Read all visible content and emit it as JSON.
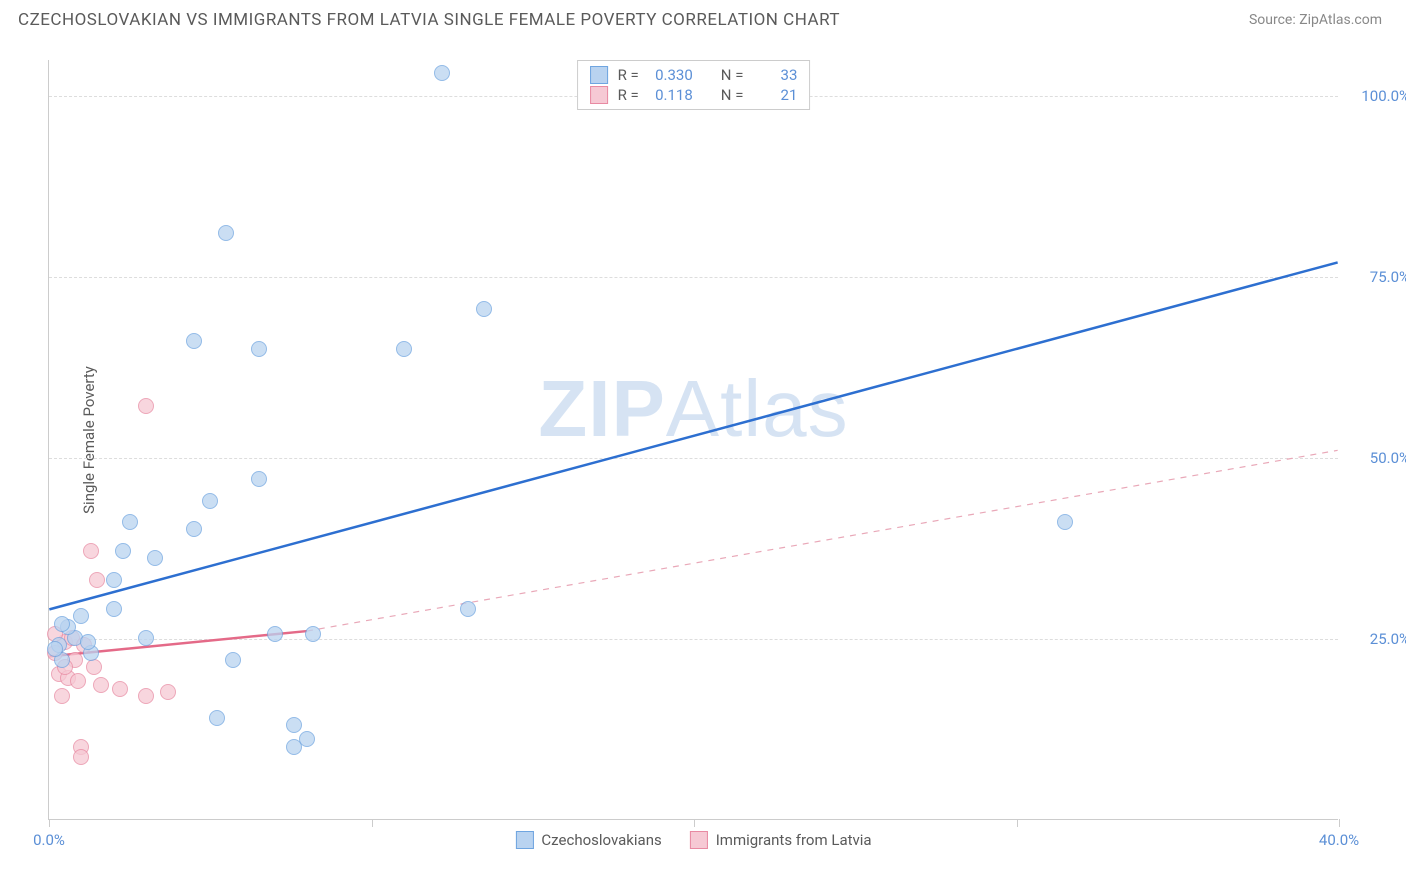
{
  "header": {
    "title": "CZECHOSLOVAKIAN VS IMMIGRANTS FROM LATVIA SINGLE FEMALE POVERTY CORRELATION CHART",
    "source": "Source: ZipAtlas.com"
  },
  "chart": {
    "type": "scatter",
    "ylabel": "Single Female Poverty",
    "watermark": "ZIPAtlas",
    "xlim": [
      0,
      40
    ],
    "ylim": [
      0,
      105
    ],
    "background_color": "#ffffff",
    "grid_color": "#dddddd",
    "axis_color": "#cccccc",
    "tick_label_color": "#5b8fd6",
    "text_color": "#5a5a5a",
    "tick_fontsize": 15,
    "label_fontsize": 15,
    "title_fontsize": 17,
    "yticks": [
      {
        "v": 25,
        "label": "25.0%"
      },
      {
        "v": 50,
        "label": "50.0%"
      },
      {
        "v": 75,
        "label": "75.0%"
      },
      {
        "v": 100,
        "label": "100.0%"
      }
    ],
    "xticks": [
      {
        "v": 0,
        "label": "0.0%"
      },
      {
        "v": 10,
        "label": ""
      },
      {
        "v": 20,
        "label": ""
      },
      {
        "v": 30,
        "label": ""
      },
      {
        "v": 40,
        "label": "40.0%"
      }
    ],
    "series": [
      {
        "key": "czech",
        "name": "Czechoslovakians",
        "fill": "#b9d3f0",
        "stroke": "#6fa5e0",
        "marker_radius": 8,
        "marker_opacity": 0.75,
        "stats": {
          "R": "0.330",
          "N": "33"
        },
        "trend": {
          "solid": true,
          "color": "#2d6fd0",
          "width": 2.5,
          "x1": 0,
          "y1": 29,
          "x2": 40,
          "y2": 77
        },
        "points": [
          {
            "x": 12.2,
            "y": 103
          },
          {
            "x": 5.5,
            "y": 81
          },
          {
            "x": 13.5,
            "y": 70.5
          },
          {
            "x": 4.5,
            "y": 66
          },
          {
            "x": 6.5,
            "y": 65
          },
          {
            "x": 11.0,
            "y": 65
          },
          {
            "x": 6.5,
            "y": 47
          },
          {
            "x": 5.0,
            "y": 44
          },
          {
            "x": 2.5,
            "y": 41
          },
          {
            "x": 4.5,
            "y": 40
          },
          {
            "x": 2.3,
            "y": 37
          },
          {
            "x": 3.3,
            "y": 36
          },
          {
            "x": 2.0,
            "y": 33
          },
          {
            "x": 2.0,
            "y": 29
          },
          {
            "x": 13.0,
            "y": 29
          },
          {
            "x": 31.5,
            "y": 41
          },
          {
            "x": 7.0,
            "y": 25.5
          },
          {
            "x": 8.2,
            "y": 25.5
          },
          {
            "x": 3.0,
            "y": 25
          },
          {
            "x": 0.8,
            "y": 25
          },
          {
            "x": 0.3,
            "y": 24
          },
          {
            "x": 1.3,
            "y": 23
          },
          {
            "x": 5.7,
            "y": 22
          },
          {
            "x": 0.4,
            "y": 22
          },
          {
            "x": 5.2,
            "y": 14
          },
          {
            "x": 7.6,
            "y": 13
          },
          {
            "x": 8.0,
            "y": 11
          },
          {
            "x": 7.6,
            "y": 10
          },
          {
            "x": 0.6,
            "y": 26.5
          },
          {
            "x": 1.0,
            "y": 28
          },
          {
            "x": 1.2,
            "y": 24.5
          },
          {
            "x": 0.2,
            "y": 23.5
          },
          {
            "x": 0.4,
            "y": 27
          }
        ]
      },
      {
        "key": "latvia",
        "name": "Immigrants from Latvia",
        "fill": "#f6c9d4",
        "stroke": "#e88aa2",
        "marker_radius": 8,
        "marker_opacity": 0.75,
        "stats": {
          "R": "0.118",
          "N": "21"
        },
        "trend_solid": {
          "color": "#e46a88",
          "width": 2.5,
          "x1": 0,
          "y1": 22.5,
          "x2": 8,
          "y2": 26
        },
        "trend_dashed": {
          "color": "#e9a8b8",
          "width": 1.2,
          "dash": "6 6",
          "x1": 8,
          "y1": 26,
          "x2": 40,
          "y2": 51
        },
        "points": [
          {
            "x": 3.0,
            "y": 57
          },
          {
            "x": 1.3,
            "y": 37
          },
          {
            "x": 1.5,
            "y": 33
          },
          {
            "x": 0.5,
            "y": 24.5
          },
          {
            "x": 0.2,
            "y": 23
          },
          {
            "x": 0.8,
            "y": 22
          },
          {
            "x": 1.4,
            "y": 21
          },
          {
            "x": 0.3,
            "y": 20
          },
          {
            "x": 0.6,
            "y": 19.5
          },
          {
            "x": 0.9,
            "y": 19
          },
          {
            "x": 1.6,
            "y": 18.5
          },
          {
            "x": 2.2,
            "y": 18
          },
          {
            "x": 3.0,
            "y": 17
          },
          {
            "x": 3.7,
            "y": 17.5
          },
          {
            "x": 1.0,
            "y": 10
          },
          {
            "x": 1.0,
            "y": 8.5
          },
          {
            "x": 0.4,
            "y": 17
          },
          {
            "x": 0.2,
            "y": 25.5
          },
          {
            "x": 0.7,
            "y": 25
          },
          {
            "x": 1.1,
            "y": 24
          },
          {
            "x": 0.5,
            "y": 21
          }
        ]
      }
    ]
  },
  "stat_legend": {
    "R_label": "R =",
    "N_label": "N ="
  }
}
